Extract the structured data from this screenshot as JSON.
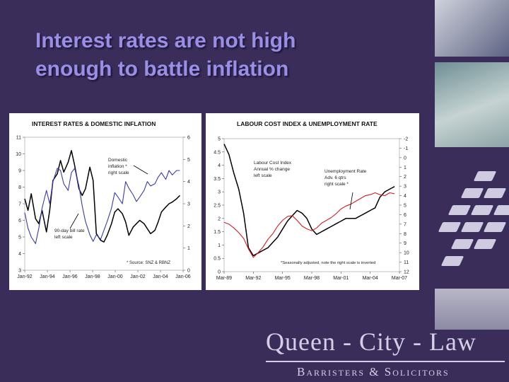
{
  "slide": {
    "title_line1": "Interest rates are not high",
    "title_line2": "enough to battle inflation"
  },
  "logo": {
    "main": "Queen - City - Law",
    "sub": "Barristers & Solicitors"
  },
  "colors": {
    "background": "#3a2d5a",
    "title": "#9a8fe6",
    "series_black": "#000000",
    "series_blue": "#3b3bb0",
    "series_red": "#d22020"
  },
  "chart_data": [
    {
      "type": "line",
      "title": "INTEREST RATES & DOMESTIC INFLATION",
      "x_ticks": [
        "Jan-92",
        "Jan-94",
        "Jan-96",
        "Jan-98",
        "Jan-00",
        "Jan-02",
        "Jan-04",
        "Jan-06"
      ],
      "x_range": [
        1992.0,
        2006.6
      ],
      "ylim_left": [
        3,
        11
      ],
      "left_ticks": [
        "3",
        "4",
        "5",
        "6",
        "7",
        "8",
        "9",
        "10",
        "11"
      ],
      "ylim_right": [
        0,
        6
      ],
      "right_ticks": [
        "0",
        "1",
        "2",
        "3",
        "4",
        "5",
        "6"
      ],
      "annotations": {
        "domestic": [
          "Domestic",
          "inflation *",
          "right scale"
        ],
        "bill": [
          "90-day bill rate",
          "left scale"
        ],
        "source": "* Source: SNZ & RBNZ"
      },
      "series": [
        {
          "axis": "left",
          "color": "#000000",
          "x": [
            1992.0,
            1992.3,
            1992.6,
            1993.0,
            1993.3,
            1993.6,
            1994.0,
            1994.3,
            1994.6,
            1995.0,
            1995.3,
            1995.6,
            1996.0,
            1996.3,
            1996.6,
            1997.0,
            1997.3,
            1997.6,
            1998.0,
            1998.3,
            1998.6,
            1999.0,
            1999.3,
            1999.6,
            2000.0,
            2000.3,
            2000.6,
            2001.0,
            2001.3,
            2001.6,
            2002.0,
            2002.3,
            2002.6,
            2003.0,
            2003.3,
            2003.6,
            2004.0,
            2004.3,
            2004.6,
            2005.0,
            2005.3,
            2005.6,
            2006.0,
            2006.3
          ],
          "values": [
            7.3,
            6.6,
            7.6,
            6.1,
            5.8,
            6.6,
            5.3,
            6.6,
            8.4,
            8.8,
            9.6,
            8.9,
            9.5,
            10.2,
            9.3,
            7.9,
            7.5,
            7.9,
            9.2,
            8.4,
            5.2,
            4.8,
            4.7,
            5.1,
            5.8,
            6.5,
            6.7,
            6.4,
            5.9,
            5.1,
            5.6,
            5.8,
            6.0,
            5.8,
            5.5,
            5.2,
            5.4,
            5.9,
            6.5,
            6.8,
            7.0,
            7.1,
            7.3,
            7.5
          ]
        },
        {
          "axis": "right",
          "color": "#3b3bb0",
          "x": [
            1992.0,
            1992.3,
            1992.6,
            1993.0,
            1993.3,
            1993.6,
            1994.0,
            1994.3,
            1994.6,
            1995.0,
            1995.3,
            1995.6,
            1996.0,
            1996.3,
            1996.6,
            1997.0,
            1997.3,
            1997.6,
            1998.0,
            1998.3,
            1998.6,
            1999.0,
            1999.3,
            1999.6,
            2000.0,
            2000.3,
            2000.6,
            2001.0,
            2001.3,
            2001.6,
            2002.0,
            2002.3,
            2002.6,
            2003.0,
            2003.3,
            2003.6,
            2004.0,
            2004.3,
            2004.6,
            2005.0,
            2005.3,
            2005.6,
            2006.0,
            2006.3
          ],
          "values": [
            2.6,
            1.9,
            1.5,
            1.2,
            1.9,
            2.8,
            3.6,
            3.0,
            4.0,
            4.6,
            4.5,
            3.9,
            3.6,
            4.4,
            4.6,
            3.8,
            2.9,
            2.2,
            1.6,
            1.3,
            1.6,
            1.4,
            1.8,
            2.2,
            2.8,
            3.5,
            3.3,
            3.0,
            4.0,
            3.7,
            3.4,
            3.1,
            3.3,
            3.6,
            4.0,
            3.8,
            3.9,
            4.2,
            4.4,
            4.1,
            4.5,
            4.3,
            4.5,
            4.5
          ]
        }
      ]
    },
    {
      "type": "line",
      "title": "LABOUR COST INDEX & UNEMPLOYMENT RATE",
      "x_ticks": [
        "Mar-89",
        "Mar-92",
        "Mar-95",
        "Mar-98",
        "Mar-01",
        "Mar-04",
        "Mar-07"
      ],
      "x_range": [
        1989.0,
        2007.0
      ],
      "ylim_left": [
        0,
        5
      ],
      "left_ticks": [
        "0",
        "0.5",
        "1",
        "1.5",
        "2",
        "2.5",
        "3",
        "3.5",
        "4",
        "4.5",
        "5"
      ],
      "ylim_right": [
        -2,
        12
      ],
      "right_ticks": [
        "-2",
        "-1",
        "0",
        "1",
        "2",
        "3",
        "4",
        "5",
        "6",
        "7",
        "8",
        "9",
        "10",
        "11",
        "12"
      ],
      "right_inverted": true,
      "annotations": {
        "lci": [
          "Labour Cost Index",
          "Annual % change",
          "left scale"
        ],
        "unemp": [
          "Unemployment Rate",
          "Adv. 6 qtrs",
          "right scale *"
        ],
        "note": "*Seasonally adjusted, note the right scale is inverted"
      },
      "series": [
        {
          "axis": "left",
          "color": "#000000",
          "x": [
            1989.0,
            1989.5,
            1990.0,
            1990.5,
            1991.0,
            1991.5,
            1992.0,
            1992.5,
            1993.0,
            1993.5,
            1994.0,
            1994.5,
            1995.0,
            1995.5,
            1996.0,
            1996.5,
            1997.0,
            1997.5,
            1998.0,
            1998.5,
            1999.0,
            1999.5,
            2000.0,
            2000.5,
            2001.0,
            2001.5,
            2002.0,
            2002.5,
            2003.0,
            2003.5,
            2004.0,
            2004.5,
            2005.0,
            2005.5,
            2006.0,
            2006.5
          ],
          "values": [
            4.8,
            4.4,
            3.7,
            3.1,
            2.2,
            0.9,
            0.6,
            0.7,
            0.8,
            0.9,
            1.1,
            1.3,
            1.6,
            1.9,
            2.1,
            2.3,
            2.2,
            2.0,
            1.6,
            1.4,
            1.5,
            1.6,
            1.7,
            1.8,
            1.9,
            2.0,
            2.0,
            2.0,
            2.1,
            2.2,
            2.3,
            2.4,
            2.8,
            3.0,
            3.1,
            3.2
          ]
        },
        {
          "axis": "right",
          "color": "#d22020",
          "x": [
            1989.0,
            1989.5,
            1990.0,
            1990.5,
            1991.0,
            1991.5,
            1992.0,
            1992.5,
            1993.0,
            1993.5,
            1994.0,
            1994.5,
            1995.0,
            1995.5,
            1996.0,
            1996.5,
            1997.0,
            1997.5,
            1998.0,
            1998.5,
            1999.0,
            1999.5,
            2000.0,
            2000.5,
            2001.0,
            2001.5,
            2002.0,
            2002.5,
            2003.0,
            2003.5,
            2004.0,
            2004.5,
            2005.0,
            2005.5,
            2006.0,
            2006.5
          ],
          "values": [
            6.8,
            7.0,
            7.4,
            7.9,
            8.5,
            9.6,
            10.5,
            10.0,
            9.4,
            8.6,
            8.0,
            7.2,
            6.6,
            6.2,
            6.1,
            6.6,
            7.2,
            7.5,
            7.7,
            7.4,
            6.9,
            6.6,
            6.3,
            5.9,
            5.4,
            5.1,
            4.9,
            4.6,
            4.3,
            4.0,
            3.9,
            3.7,
            3.9,
            4.0,
            3.7,
            3.8
          ]
        }
      ]
    }
  ]
}
